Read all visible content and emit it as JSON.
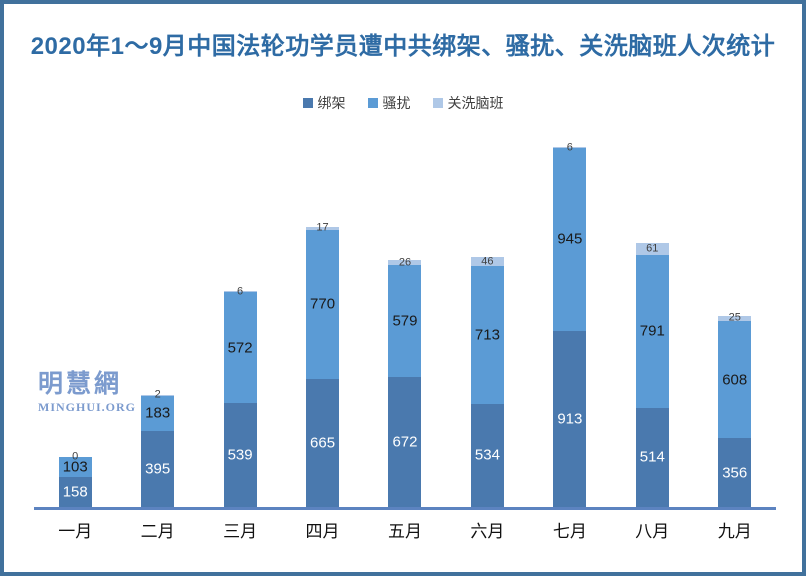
{
  "title": "2020年1～9月中国法轮功学员遭中共绑架、骚扰、关洗脑班人次统计",
  "watermark": {
    "cjk": "明慧網",
    "latin": "MINGHUI.ORG"
  },
  "colors": {
    "frame_border": "#41719C",
    "title_text": "#2E6BA4",
    "axis_line": "#5C83C0",
    "legend_text": "#404040",
    "watermark": "#7C9BCE"
  },
  "chart_data": {
    "type": "bar",
    "stacked": true,
    "title": "2020年1～9月中国法轮功学员遭中共绑架、骚扰、关洗脑班人次统计",
    "categories": [
      "一月",
      "二月",
      "三月",
      "四月",
      "五月",
      "六月",
      "七月",
      "八月",
      "九月"
    ],
    "series": [
      {
        "name": "绑架",
        "color": "#4A79AE",
        "label_color": "#FFFFFF",
        "values": [
          158,
          395,
          539,
          665,
          672,
          534,
          913,
          514,
          356
        ]
      },
      {
        "name": "骚扰",
        "color": "#5B9BD5",
        "label_color": "#1A1A1A",
        "values": [
          103,
          183,
          572,
          770,
          579,
          713,
          945,
          791,
          608
        ]
      },
      {
        "name": "关洗脑班",
        "color": "#AFC8E7",
        "label_color": "#404040",
        "values": [
          0,
          2,
          6,
          17,
          26,
          46,
          6,
          61,
          25
        ]
      }
    ],
    "totals": [
      261,
      580,
      1117,
      1452,
      1277,
      1293,
      1864,
      1366,
      989
    ],
    "xlabel": "",
    "ylabel": "",
    "ylim": [
      0,
      1864
    ],
    "grid": false,
    "legend_position": "top",
    "data_labels": true
  }
}
